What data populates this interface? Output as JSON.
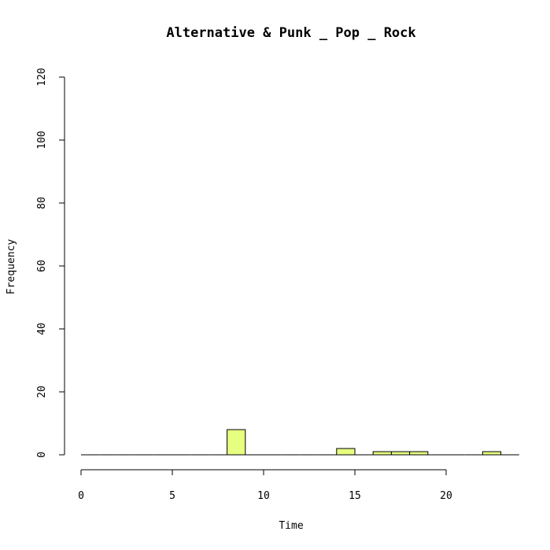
{
  "chart_data": {
    "type": "bar",
    "title": "Alternative & Punk _ Pop _ Rock",
    "xlabel": "Time",
    "ylabel": "Frequency",
    "xlim": [
      0,
      24
    ],
    "ylim": [
      0,
      120
    ],
    "x_ticks": [
      0,
      5,
      10,
      15,
      20
    ],
    "y_ticks": [
      0,
      20,
      40,
      60,
      80,
      100,
      120
    ],
    "bar_color": "#e6ff80",
    "bin_width": 1,
    "bins": [
      {
        "start": 0,
        "count": 0
      },
      {
        "start": 1,
        "count": 0
      },
      {
        "start": 2,
        "count": 0
      },
      {
        "start": 3,
        "count": 0
      },
      {
        "start": 4,
        "count": 0
      },
      {
        "start": 5,
        "count": 0
      },
      {
        "start": 6,
        "count": 0
      },
      {
        "start": 7,
        "count": 0
      },
      {
        "start": 8,
        "count": 8
      },
      {
        "start": 9,
        "count": 0
      },
      {
        "start": 10,
        "count": 0
      },
      {
        "start": 11,
        "count": 0
      },
      {
        "start": 12,
        "count": 0
      },
      {
        "start": 13,
        "count": 0
      },
      {
        "start": 14,
        "count": 2
      },
      {
        "start": 15,
        "count": 0
      },
      {
        "start": 16,
        "count": 1
      },
      {
        "start": 17,
        "count": 1
      },
      {
        "start": 18,
        "count": 1
      },
      {
        "start": 19,
        "count": 0
      },
      {
        "start": 20,
        "count": 0
      },
      {
        "start": 21,
        "count": 0
      },
      {
        "start": 22,
        "count": 1
      },
      {
        "start": 23,
        "count": 0
      }
    ]
  }
}
